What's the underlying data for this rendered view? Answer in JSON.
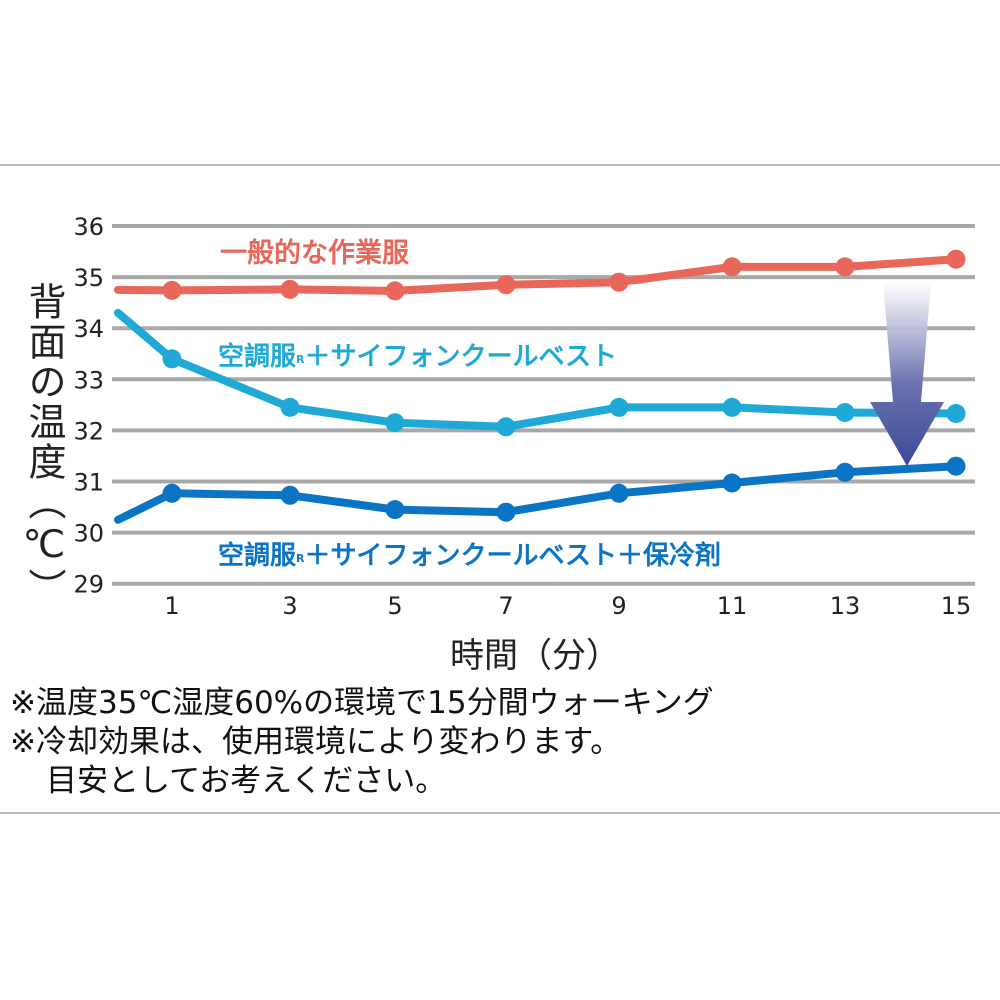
{
  "chart_data": {
    "type": "line",
    "title": "",
    "xlabel": "時間（分）",
    "ylabel": "背面の温度（℃）",
    "ylim": [
      29,
      36
    ],
    "yticks": [
      29,
      30,
      31,
      32,
      33,
      34,
      35,
      36
    ],
    "xticks": [
      1,
      3,
      5,
      7,
      9,
      11,
      13,
      15
    ],
    "grid": true,
    "legend_position": "inline labels",
    "x": [
      0,
      1,
      3,
      5,
      7,
      9,
      11,
      13,
      15
    ],
    "series": [
      {
        "name": "一般的な作業服",
        "color": "#e8675a",
        "values": [
          34.75,
          34.74,
          34.76,
          34.73,
          34.85,
          34.9,
          35.2,
          35.2,
          35.35
        ]
      },
      {
        "name": "空調服®＋サイフォンクールベスト",
        "color": "#1fa9d6",
        "values": [
          34.3,
          33.4,
          32.45,
          32.15,
          32.07,
          32.45,
          32.45,
          32.35,
          32.33
        ]
      },
      {
        "name": "空調服®＋サイフォンクールベスト＋保冷剤",
        "color": "#0b74c4",
        "values": [
          30.25,
          30.77,
          30.73,
          30.45,
          30.4,
          30.77,
          30.97,
          31.18,
          31.3
        ]
      }
    ],
    "annotations": [
      "down-arrow near x=14 indicating temperature reduction"
    ]
  },
  "labels": {
    "series_red": "一般的な作業服",
    "series_cyan_main": "空調服",
    "series_cyan_rest": "＋サイフォンクールベスト",
    "series_blue_main": "空調服",
    "series_blue_rest": "＋サイフォンクールベスト＋保冷剤",
    "registered": "R",
    "ylabel": "背面の温度（℃）",
    "xtitle": "時間（分）"
  },
  "notes": [
    "※温度35℃湿度60%の環境で15分間ウォーキング",
    "※冷却効果は、使用環境により変わります。",
    "目安としてお考えください。"
  ],
  "colors": {
    "red": "#e8675a",
    "cyan": "#1fa9d6",
    "blue": "#0b74c4",
    "arrow": "#3b4a9a",
    "grid": "#a8a8a8"
  }
}
